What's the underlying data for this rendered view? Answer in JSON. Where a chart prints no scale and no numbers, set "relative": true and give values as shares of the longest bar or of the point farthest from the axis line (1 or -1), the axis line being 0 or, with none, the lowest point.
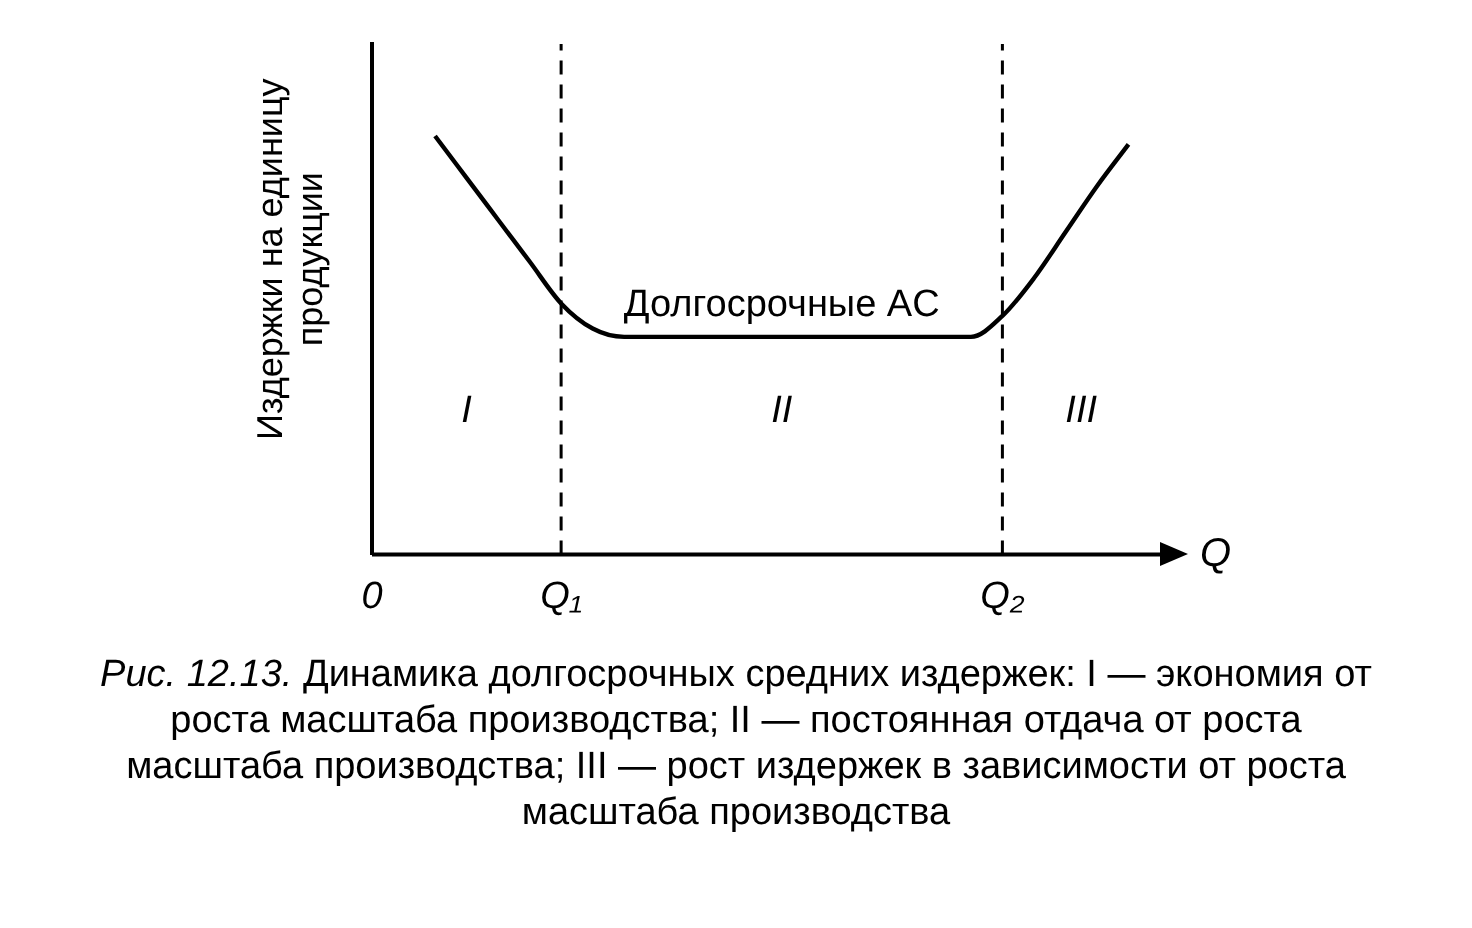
{
  "chart_data": {
    "type": "line",
    "relative": true,
    "ylabel": "Издержки на единицу продукции",
    "xlabel": "Q",
    "categories": [
      "0",
      null,
      null,
      null,
      null,
      null,
      "Q₁",
      null,
      null,
      null,
      null,
      null,
      null,
      null,
      null,
      null,
      null,
      null,
      null,
      null,
      "Q₂",
      null,
      null,
      null,
      null,
      null
    ],
    "values": [
      null,
      null,
      1.0,
      0.9,
      0.8,
      0.7,
      0.6,
      0.54,
      0.52,
      0.52,
      0.52,
      0.52,
      0.52,
      0.52,
      0.52,
      0.52,
      0.52,
      0.52,
      0.52,
      0.52,
      0.57,
      0.66,
      0.77,
      0.88,
      0.98,
      null
    ],
    "color": "#000000",
    "marker": "none",
    "line_style": "solid",
    "grid": false,
    "legend": false,
    "tick_labels": "x",
    "ref_lines": [
      {
        "axis": "x",
        "value": "Q₁",
        "color": "#000000",
        "line_style": "dashed"
      },
      {
        "axis": "x",
        "value": "Q₂",
        "color": "#000000",
        "line_style": "dashed"
      }
    ],
    "annotations": [
      "I",
      "II",
      "III",
      "Долгосрочные AC",
      "Рис. 12.13. Динамика долгосрочных средних издержек: I — экономия от роста масштаба производства; II — постоянная отдача от роста масштаба производства; III — рост издержек в зависимости от роста масштаба производства"
    ]
  }
}
